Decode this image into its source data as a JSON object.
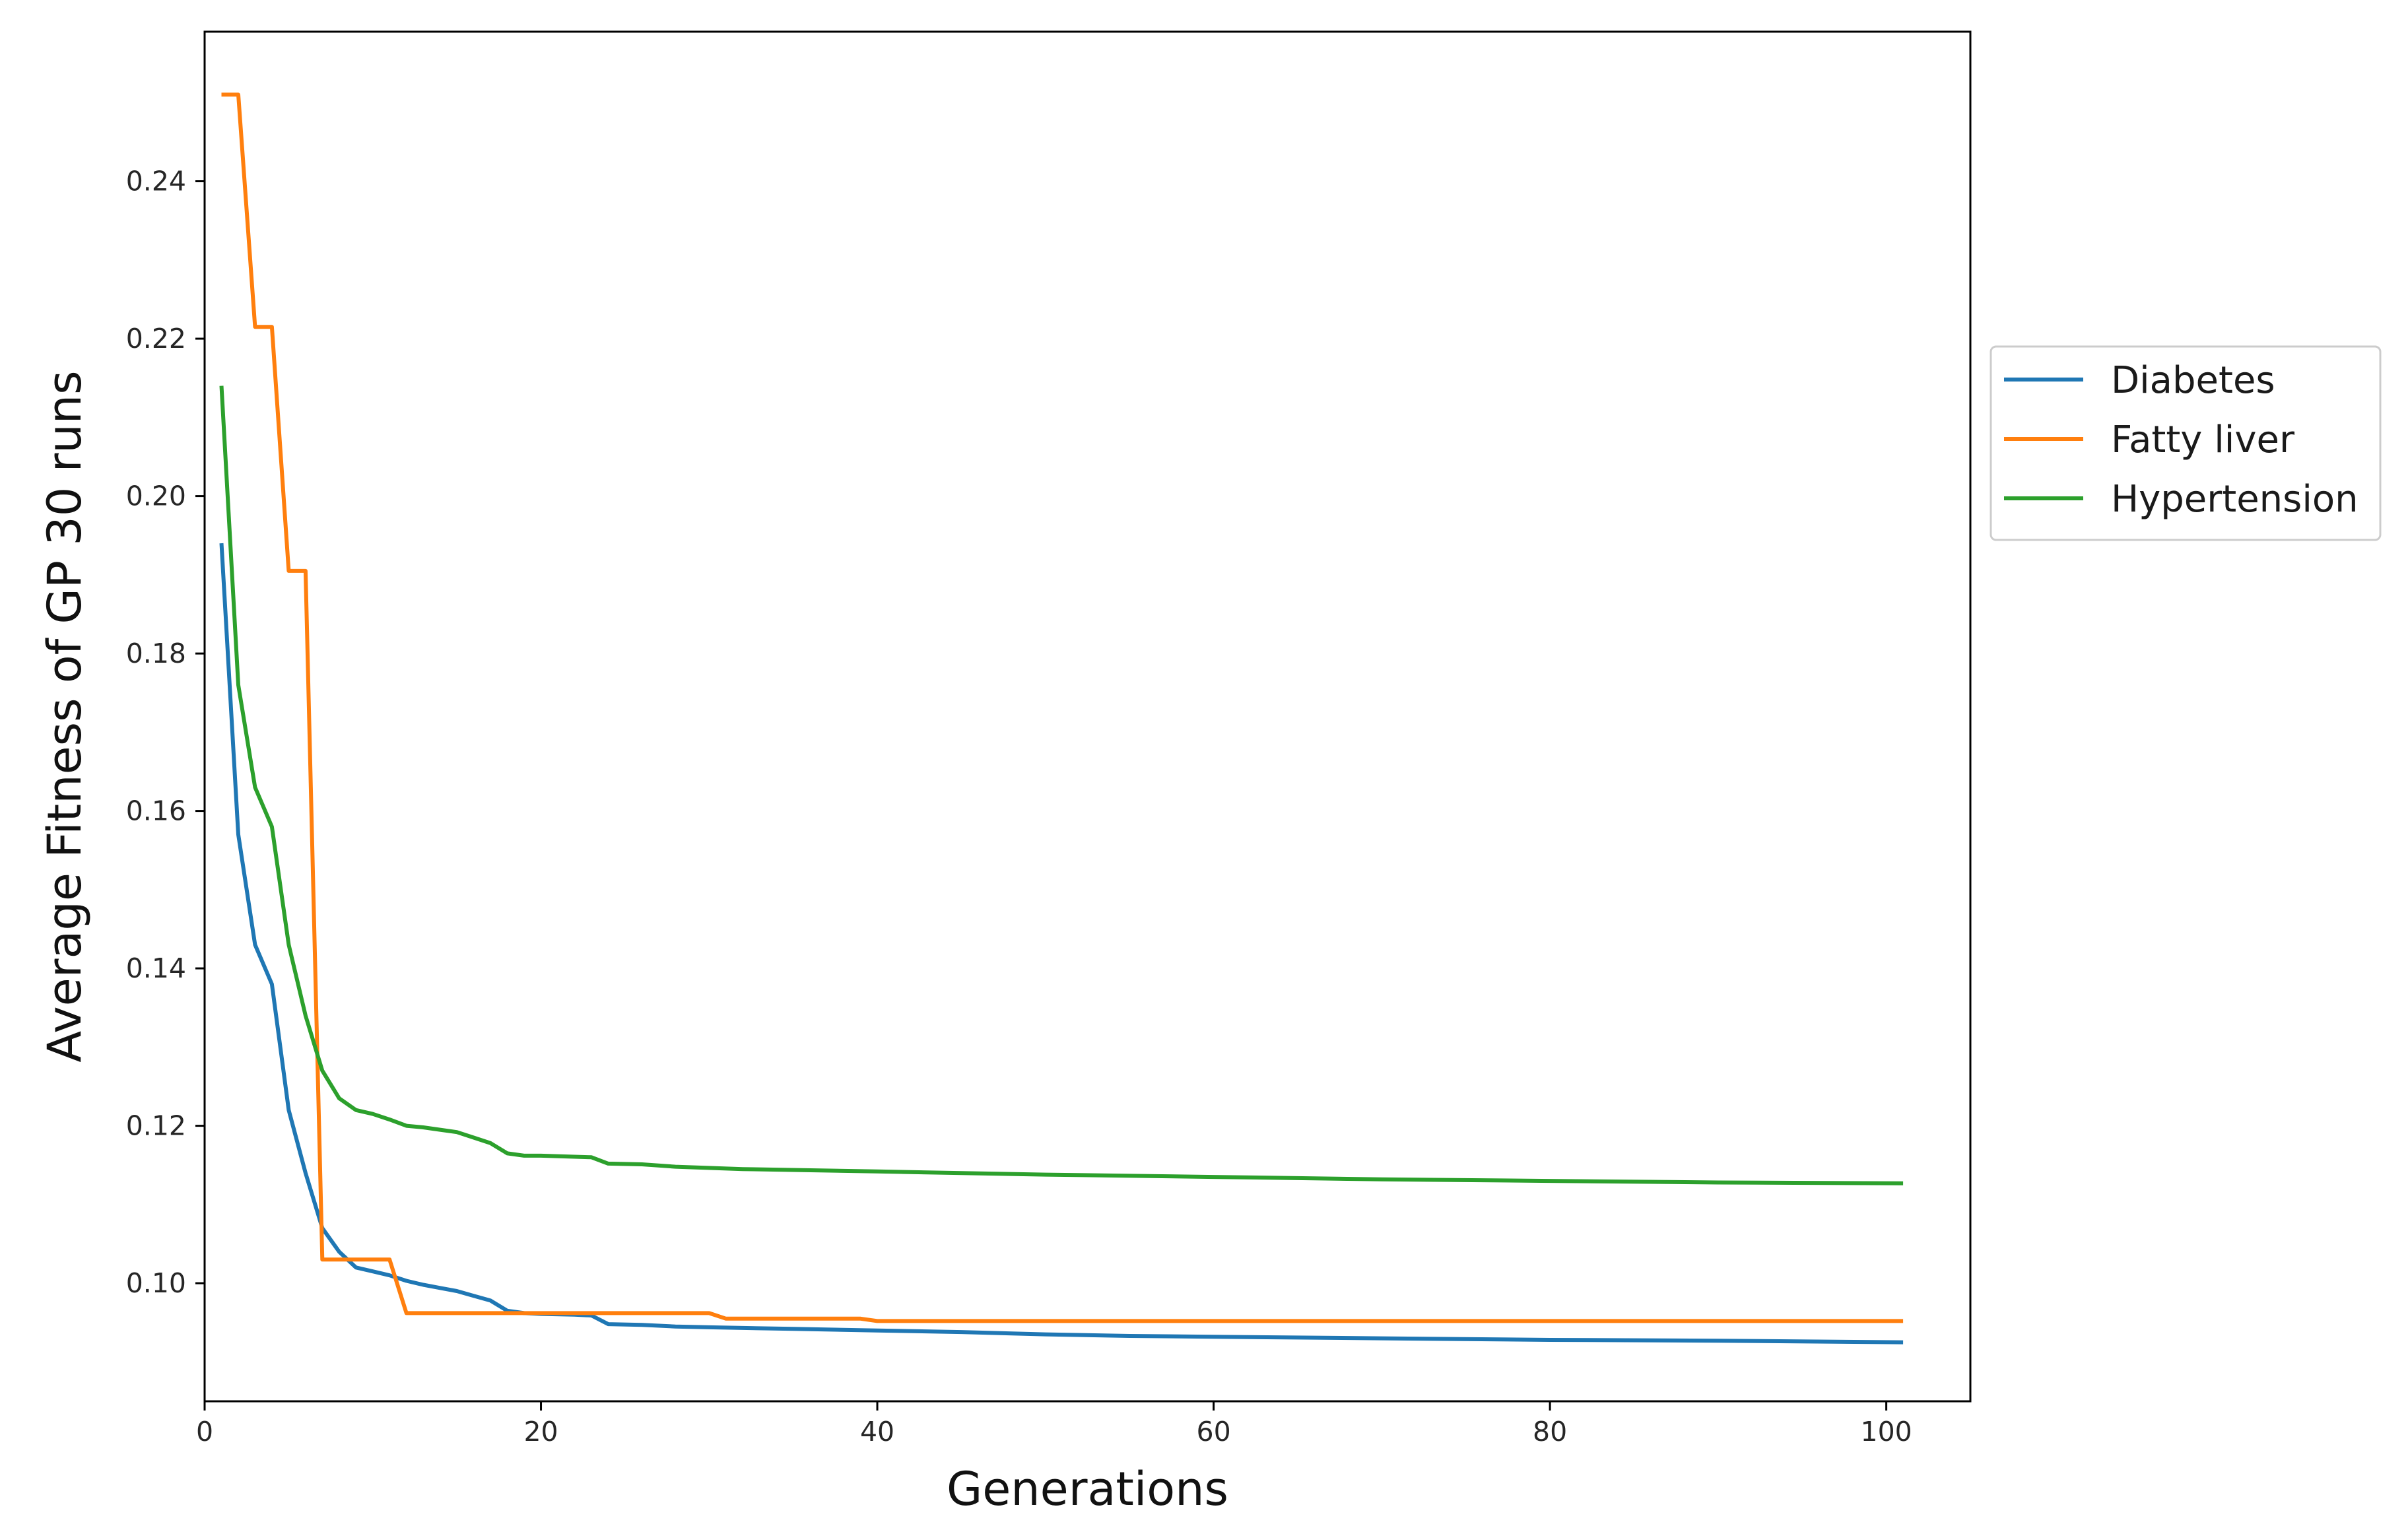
{
  "chart_data": {
    "type": "line",
    "title": "",
    "xlabel": "Generations",
    "ylabel": "Average Fitness of GP 30 runs",
    "xlim": [
      0,
      105
    ],
    "ylim": [
      0.085,
      0.259
    ],
    "xticks": [
      0,
      20,
      40,
      60,
      80,
      100
    ],
    "yticks": [
      0.1,
      0.12,
      0.14,
      0.16,
      0.18,
      0.2,
      0.22,
      0.24
    ],
    "grid": false,
    "legend_position": "right, outside plot",
    "series": [
      {
        "name": "Diabetes",
        "color": "#1f77b4",
        "points": [
          [
            1,
            0.194
          ],
          [
            2,
            0.157
          ],
          [
            3,
            0.143
          ],
          [
            4,
            0.138
          ],
          [
            5,
            0.122
          ],
          [
            6,
            0.114
          ],
          [
            7,
            0.107
          ],
          [
            8,
            0.104
          ],
          [
            9,
            0.102
          ],
          [
            10,
            0.1015
          ],
          [
            11,
            0.101
          ],
          [
            12,
            0.1003
          ],
          [
            13,
            0.0998
          ],
          [
            14,
            0.0994
          ],
          [
            15,
            0.099
          ],
          [
            16,
            0.0984
          ],
          [
            17,
            0.0978
          ],
          [
            18,
            0.0965
          ],
          [
            19,
            0.0962
          ],
          [
            20,
            0.0961
          ],
          [
            22,
            0.096
          ],
          [
            23,
            0.0959
          ],
          [
            24,
            0.0948
          ],
          [
            26,
            0.0947
          ],
          [
            28,
            0.0945
          ],
          [
            30,
            0.0944
          ],
          [
            35,
            0.0942
          ],
          [
            40,
            0.094
          ],
          [
            45,
            0.0938
          ],
          [
            50,
            0.0935
          ],
          [
            55,
            0.0933
          ],
          [
            60,
            0.0932
          ],
          [
            70,
            0.093
          ],
          [
            80,
            0.0928
          ],
          [
            90,
            0.0927
          ],
          [
            101,
            0.0925
          ]
        ]
      },
      {
        "name": "Fatty liver",
        "color": "#ff7f0e",
        "points": [
          [
            1,
            0.251
          ],
          [
            2,
            0.251
          ],
          [
            3,
            0.2215
          ],
          [
            4,
            0.2215
          ],
          [
            5,
            0.1905
          ],
          [
            6,
            0.1905
          ],
          [
            7,
            0.103
          ],
          [
            8,
            0.103
          ],
          [
            9,
            0.103
          ],
          [
            10,
            0.103
          ],
          [
            11,
            0.103
          ],
          [
            12,
            0.0962
          ],
          [
            13,
            0.0962
          ],
          [
            20,
            0.0962
          ],
          [
            25,
            0.0962
          ],
          [
            30,
            0.0962
          ],
          [
            31,
            0.0955
          ],
          [
            35,
            0.0955
          ],
          [
            39,
            0.0955
          ],
          [
            40,
            0.0952
          ],
          [
            50,
            0.0952
          ],
          [
            60,
            0.0952
          ],
          [
            80,
            0.0952
          ],
          [
            101,
            0.0952
          ]
        ]
      },
      {
        "name": "Hypertension",
        "color": "#2ca02c",
        "points": [
          [
            1,
            0.214
          ],
          [
            2,
            0.176
          ],
          [
            3,
            0.163
          ],
          [
            4,
            0.158
          ],
          [
            5,
            0.143
          ],
          [
            6,
            0.134
          ],
          [
            7,
            0.127
          ],
          [
            8,
            0.1235
          ],
          [
            9,
            0.122
          ],
          [
            10,
            0.1215
          ],
          [
            11,
            0.1208
          ],
          [
            12,
            0.12
          ],
          [
            13,
            0.1198
          ],
          [
            14,
            0.1195
          ],
          [
            15,
            0.1192
          ],
          [
            16,
            0.1185
          ],
          [
            17,
            0.1178
          ],
          [
            18,
            0.1165
          ],
          [
            19,
            0.1162
          ],
          [
            20,
            0.1162
          ],
          [
            23,
            0.116
          ],
          [
            24,
            0.1152
          ],
          [
            26,
            0.1151
          ],
          [
            28,
            0.1148
          ],
          [
            32,
            0.1145
          ],
          [
            40,
            0.1142
          ],
          [
            50,
            0.1138
          ],
          [
            60,
            0.1135
          ],
          [
            70,
            0.1132
          ],
          [
            80,
            0.113
          ],
          [
            90,
            0.1128
          ],
          [
            101,
            0.1127
          ]
        ]
      }
    ]
  }
}
